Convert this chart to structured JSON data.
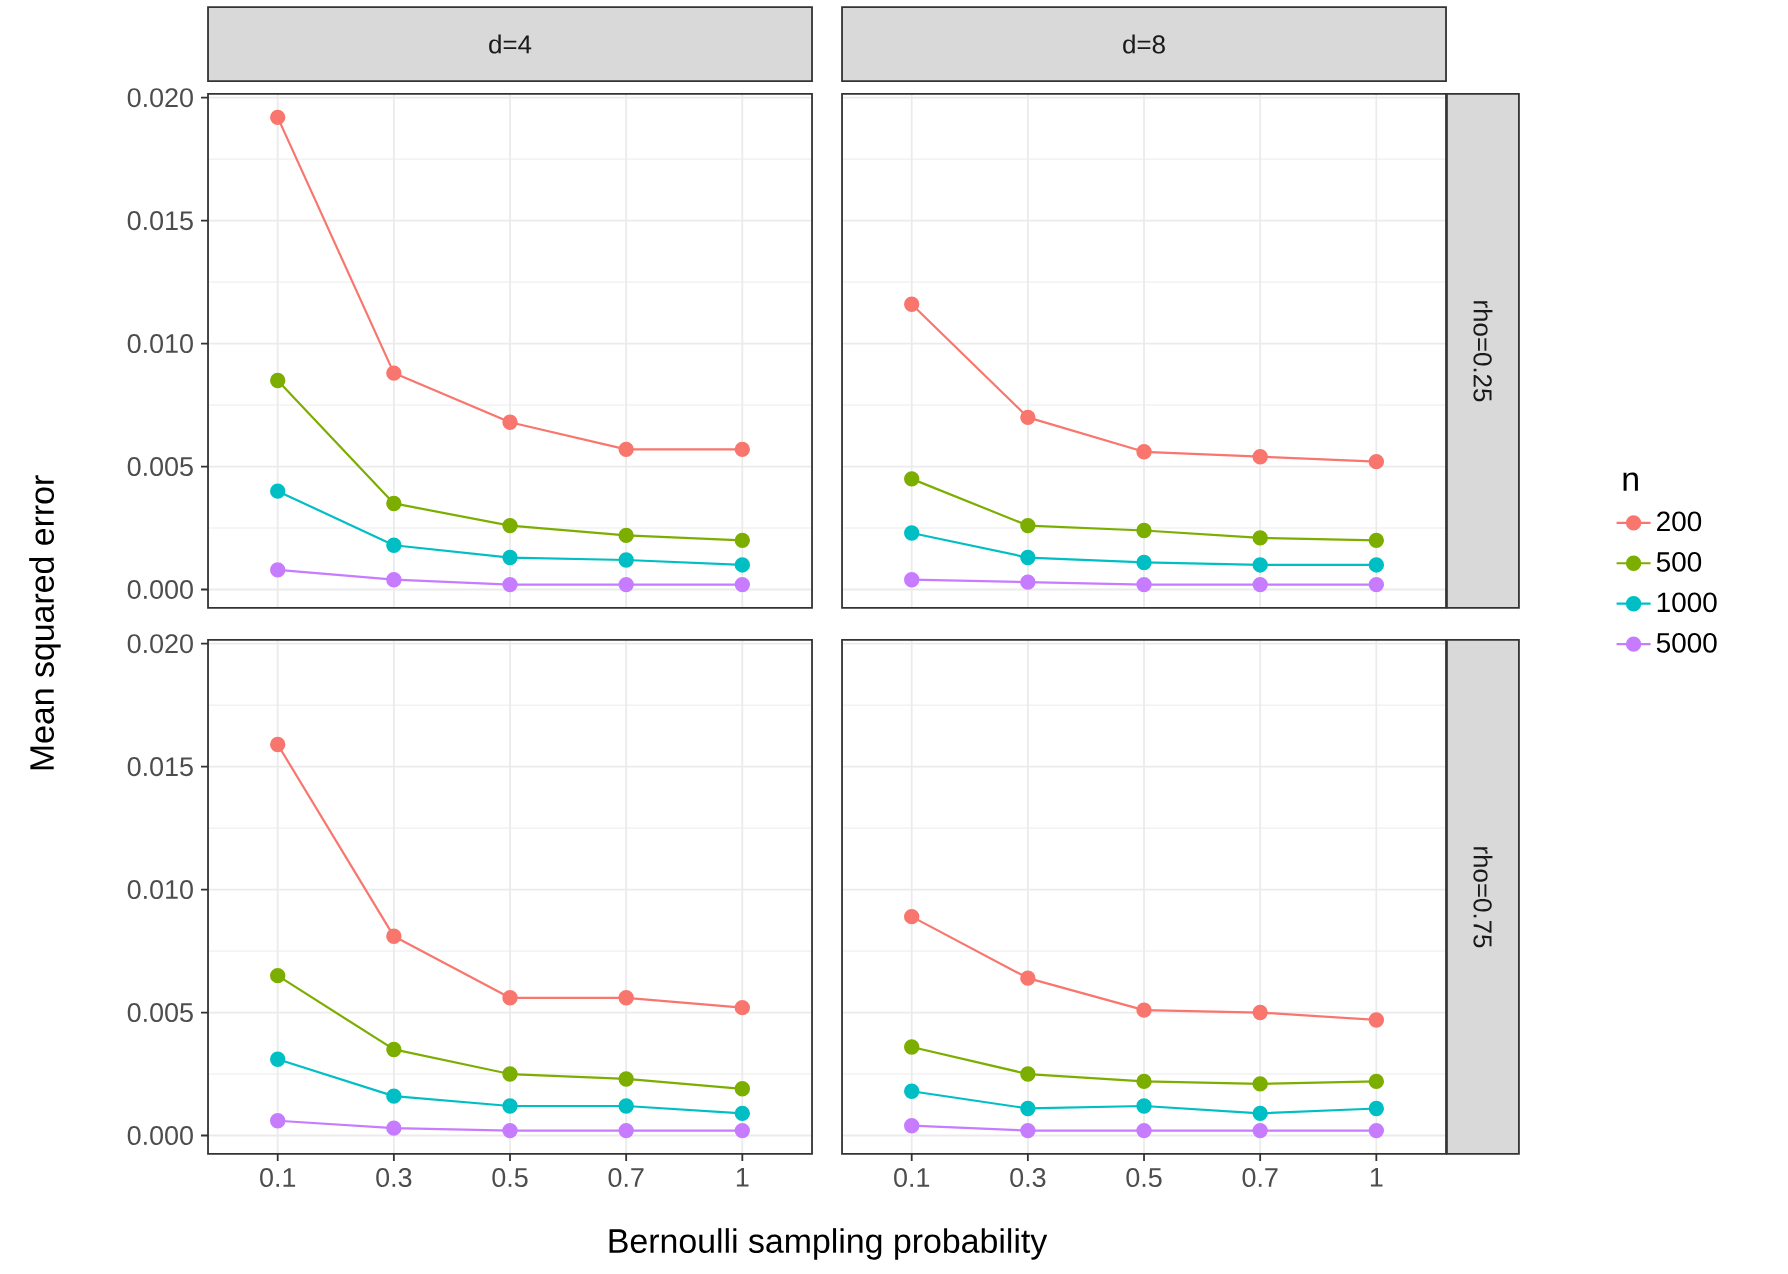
{
  "chart_data": [
    {
      "type": "line",
      "title": "d=4",
      "ylabel": "Mean squared error",
      "categories": [
        "0.1",
        "0.3",
        "0.5",
        "0.7",
        "1"
      ],
      "ylim": [
        -0.00075,
        0.02015
      ],
      "yticks": [
        {
          "value": 0,
          "label": "0.000"
        },
        {
          "value": 0.005,
          "label": "0.005"
        },
        {
          "value": 0.01,
          "label": "0.010"
        },
        {
          "value": 0.015,
          "label": "0.015"
        },
        {
          "value": 0.02,
          "label": "0.020"
        }
      ],
      "grid": true,
      "marker": "circle",
      "tick_labels": "y",
      "series": [
        {
          "color": "#f8766d",
          "values": [
            0.0192,
            0.0088,
            0.0068,
            0.0057,
            0.0057
          ]
        },
        {
          "color": "#7cae00",
          "values": [
            0.0085,
            0.0035,
            0.0026,
            0.0022,
            0.002
          ]
        },
        {
          "color": "#00bfc4",
          "values": [
            0.004,
            0.0018,
            0.0013,
            0.0012,
            0.001
          ]
        },
        {
          "color": "#c77cff",
          "values": [
            0.0008,
            0.0004,
            0.0002,
            0.0002,
            0.0002
          ]
        }
      ]
    },
    {
      "type": "line",
      "title": "d=8",
      "y2label": "rho=0.25",
      "categories": [
        "0.1",
        "0.3",
        "0.5",
        "0.7",
        "1"
      ],
      "ylim": [
        -0.00075,
        0.02015
      ],
      "yticks": [
        {
          "value": 0,
          "label": null
        },
        {
          "value": 0.005,
          "label": null
        },
        {
          "value": 0.01,
          "label": null
        },
        {
          "value": 0.015,
          "label": null
        },
        {
          "value": 0.02,
          "label": null
        }
      ],
      "grid": true,
      "marker": "circle",
      "tick_labels": false,
      "legend": "right",
      "legend_title": "n",
      "series": [
        {
          "name": "200",
          "color": "#f8766d",
          "values": [
            0.0116,
            0.007,
            0.0056,
            0.0054,
            0.0052
          ]
        },
        {
          "name": "500",
          "color": "#7cae00",
          "values": [
            0.0045,
            0.0026,
            0.0024,
            0.0021,
            0.002
          ]
        },
        {
          "name": "1000",
          "color": "#00bfc4",
          "values": [
            0.0023,
            0.0013,
            0.0011,
            0.001,
            0.001
          ]
        },
        {
          "name": "5000",
          "color": "#c77cff",
          "values": [
            0.0004,
            0.0003,
            0.0002,
            0.0002,
            0.0002
          ]
        }
      ]
    },
    {
      "type": "line",
      "xlabel": "Bernoulli sampling probability",
      "categories": [
        "0.1",
        "0.3",
        "0.5",
        "0.7",
        "1"
      ],
      "ylim": [
        -0.00075,
        0.02015
      ],
      "yticks": [
        {
          "value": 0,
          "label": "0.000"
        },
        {
          "value": 0.005,
          "label": "0.005"
        },
        {
          "value": 0.01,
          "label": "0.010"
        },
        {
          "value": 0.015,
          "label": "0.015"
        },
        {
          "value": 0.02,
          "label": "0.020"
        }
      ],
      "grid": true,
      "marker": "circle",
      "series": [
        {
          "color": "#f8766d",
          "values": [
            0.0159,
            0.0081,
            0.0056,
            0.0056,
            0.0052
          ]
        },
        {
          "color": "#7cae00",
          "values": [
            0.0065,
            0.0035,
            0.0025,
            0.0023,
            0.0019
          ]
        },
        {
          "color": "#00bfc4",
          "values": [
            0.0031,
            0.0016,
            0.0012,
            0.0012,
            0.0009
          ]
        },
        {
          "color": "#c77cff",
          "values": [
            0.0006,
            0.0003,
            0.0002,
            0.0002,
            0.0002
          ]
        }
      ]
    },
    {
      "type": "line",
      "y2label": "rho=0.75",
      "categories": [
        "0.1",
        "0.3",
        "0.5",
        "0.7",
        "1"
      ],
      "ylim": [
        -0.00075,
        0.02015
      ],
      "yticks": [
        {
          "value": 0,
          "label": null
        },
        {
          "value": 0.005,
          "label": null
        },
        {
          "value": 0.01,
          "label": null
        },
        {
          "value": 0.015,
          "label": null
        },
        {
          "value": 0.02,
          "label": null
        }
      ],
      "grid": true,
      "marker": "circle",
      "tick_labels": "x",
      "series": [
        {
          "color": "#f8766d",
          "values": [
            0.0089,
            0.0064,
            0.0051,
            0.005,
            0.0047
          ]
        },
        {
          "color": "#7cae00",
          "values": [
            0.0036,
            0.0025,
            0.0022,
            0.0021,
            0.0022
          ]
        },
        {
          "color": "#00bfc4",
          "values": [
            0.0018,
            0.0011,
            0.0012,
            0.0009,
            0.0011
          ]
        },
        {
          "color": "#c77cff",
          "values": [
            0.0004,
            0.0002,
            0.0002,
            0.0002,
            0.0002
          ]
        }
      ]
    }
  ]
}
